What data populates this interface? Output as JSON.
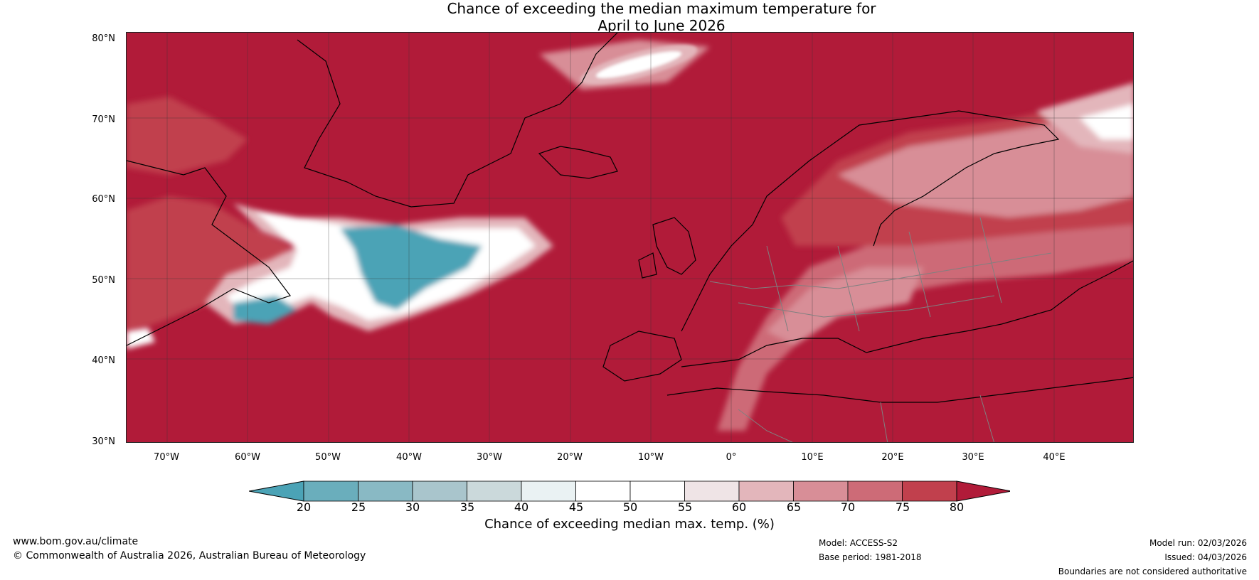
{
  "title": {
    "line1": "Chance of exceeding the median maximum temperature for",
    "line2": "April to June 2026"
  },
  "map": {
    "lat_labels": [
      "80°N",
      "70°N",
      "60°N",
      "50°N",
      "40°N",
      "30°N"
    ],
    "lon_labels": [
      "70°W",
      "60°W",
      "50°W",
      "40°W",
      "30°W",
      "20°W",
      "10°W",
      "0°",
      "10°E",
      "20°E",
      "30°E",
      "40°E"
    ],
    "colors": {
      "hot": "#B11B39",
      "warm75": "#C1404D",
      "warm70": "#CD6B77",
      "warm65": "#D88E97",
      "warm60": "#E3B6BB",
      "neutral": "#FFFFFF",
      "cool": "#4BA3B6",
      "land_line": "#000000",
      "border_line": "#808080"
    }
  },
  "colorbar": {
    "ticks": [
      "20",
      "25",
      "30",
      "35",
      "40",
      "45",
      "50",
      "55",
      "60",
      "65",
      "70",
      "75",
      "80"
    ],
    "colors": [
      "#4BA3B6",
      "#6AAEBC",
      "#89B9C4",
      "#A9C5CC",
      "#CBD9DB",
      "#EAF2F3",
      "#FFFFFF",
      "#FFFFFF",
      "#EFE4E6",
      "#E3B6BB",
      "#D88E97",
      "#CD6B77",
      "#C1404D",
      "#B11B39"
    ],
    "label": "Chance of exceeding median max. temp. (%)"
  },
  "footer": {
    "website": "www.bom.gov.au/climate",
    "copyright": "© Commonwealth of Australia 2026, Australian Bureau of Meteorology",
    "model": "Model: ACCESS-S2",
    "base_period": "Base period: 1981-2018",
    "model_run": "Model run: 02/03/2026",
    "issued": "Issued: 04/03/2026",
    "disclaimer": "Boundaries are not considered authoritative"
  }
}
